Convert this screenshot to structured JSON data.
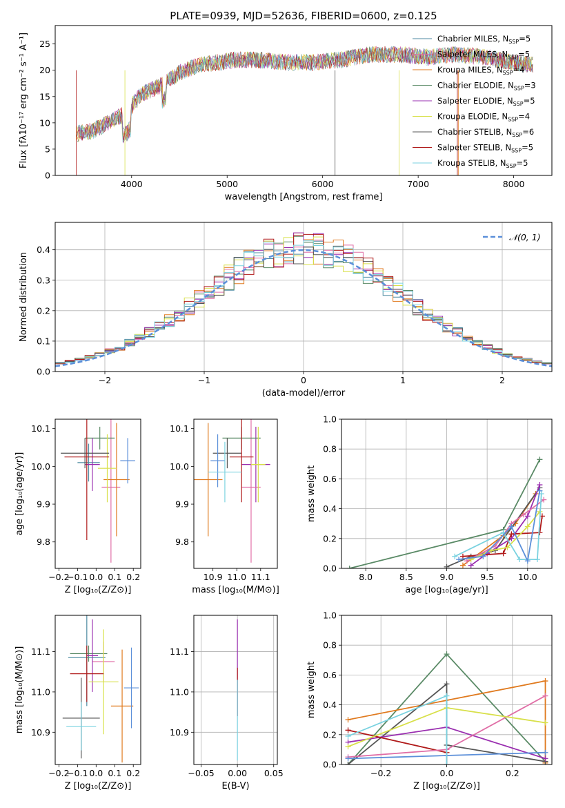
{
  "figure_title": "PLATE=0939, MJD=52636, FIBERID=0600, z=0.125",
  "colors": {
    "series": [
      "#4c8aa0",
      "#e06ea6",
      "#e07a1f",
      "#5a8a66",
      "#9a2fb0",
      "#d8e04a",
      "#555555",
      "#b01a1a",
      "#7ad2e0",
      "#5b8fd9"
    ],
    "grid": "#b0b0b0",
    "normal_curve": "#5b8fd9"
  },
  "chart_data": [
    {
      "id": "spectrum",
      "type": "line",
      "title": "PLATE=0939, MJD=52636, FIBERID=0600, z=0.125",
      "xlabel": "wavelength [Angstrom, rest frame]",
      "ylabel": "Flux [fλ10⁻¹⁷ erg cm⁻² s⁻¹ A⁻¹]",
      "xlim": [
        3200,
        8400
      ],
      "ylim": [
        0,
        28.5
      ],
      "xticks": [
        4000,
        5000,
        6000,
        7000,
        8000
      ],
      "yticks": [
        0,
        5,
        10,
        15,
        20,
        25
      ],
      "grid": false,
      "legend_position": "top-right",
      "legend": [
        "Chabrier MILES, N_SSP=5",
        "Salpeter MILES, N_SSP=5",
        "Kroupa MILES, N_SSP=4",
        "Chabrier ELODIE, N_SSP=3",
        "Salpeter ELODIE, N_SSP=5",
        "Kroupa ELODIE, N_SSP=4",
        "Chabrier STELIB, N_SSP=6",
        "Salpeter STELIB, N_SSP=5",
        "Kroupa STELIB, N_SSP=5"
      ],
      "continuum_x": [
        3450,
        3600,
        3800,
        3950,
        4100,
        4300,
        4500,
        4700,
        4900,
        5100,
        5300,
        5600,
        5900,
        6200,
        6500,
        6800,
        7100,
        7400,
        7700,
        8000,
        8200
      ],
      "continuum_y": [
        8,
        8.5,
        10.5,
        12,
        15.5,
        17,
        19.5,
        21,
        21.5,
        22,
        22,
        21.5,
        21.5,
        22,
        23,
        23,
        22.5,
        23,
        22.5,
        21.5,
        21
      ]
    },
    {
      "id": "residuals",
      "type": "histogram",
      "xlabel": "(data-model)/error",
      "ylabel": "Normed distribution",
      "xlim": [
        -2.5,
        2.5
      ],
      "ylim": [
        0,
        0.49
      ],
      "xticks": [
        -2,
        -1,
        0,
        1,
        2
      ],
      "yticks": [
        0.0,
        0.1,
        0.2,
        0.3,
        0.4
      ],
      "grid": true,
      "legend_position": "top-right",
      "legend": [
        "𝒩(0, 1)"
      ]
    },
    {
      "id": "age_vs_z",
      "type": "errorbar",
      "xlabel": "Z [log₁₀(Z/Z⊙)]",
      "ylabel": "age  [log₁₀(age/yr)]",
      "xlim": [
        -0.22,
        0.24
      ],
      "ylim": [
        9.73,
        10.125
      ],
      "xticks": [
        -0.2,
        -0.1,
        0.0,
        0.1,
        0.2
      ],
      "yticks": [
        9.8,
        9.9,
        10.0,
        10.1
      ],
      "grid": false,
      "points": [
        {
          "x": -0.04,
          "y": 10.01,
          "xerr": 0.06,
          "yerr": 0.05,
          "c": 0
        },
        {
          "x": 0.08,
          "y": 9.945,
          "xerr": 0.05,
          "yerr": 0.2,
          "c": 1
        },
        {
          "x": 0.11,
          "y": 9.965,
          "xerr": 0.07,
          "yerr": 0.15,
          "c": 2
        },
        {
          "x": 0.02,
          "y": 10.075,
          "xerr": 0.08,
          "yerr": 0.03,
          "c": 3
        },
        {
          "x": -0.02,
          "y": 10.005,
          "xerr": 0.04,
          "yerr": 0.07,
          "c": 4
        },
        {
          "x": 0.06,
          "y": 9.995,
          "xerr": 0.05,
          "yerr": 0.09,
          "c": 5
        },
        {
          "x": -0.06,
          "y": 10.035,
          "xerr": 0.13,
          "yerr": 0.04,
          "c": 6
        },
        {
          "x": -0.05,
          "y": 10.025,
          "xerr": 0.12,
          "yerr": 0.22,
          "c": 7
        },
        {
          "x": 0.17,
          "y": 10.015,
          "xerr": 0.04,
          "yerr": 0.06,
          "c": 9
        }
      ]
    },
    {
      "id": "age_vs_mass",
      "type": "errorbar",
      "xlabel": "mass [log₁₀(M/M⊙)]",
      "ylabel": "",
      "xlim": [
        10.82,
        11.17
      ],
      "ylim": [
        9.73,
        10.125
      ],
      "xticks": [
        10.9,
        11.0,
        11.1
      ],
      "yticks": [
        9.8,
        9.9,
        10.0,
        10.1
      ],
      "grid": false,
      "points": [
        {
          "x": 11.08,
          "y": 10.005,
          "xerr": 0.06,
          "yerr": 0.1,
          "c": 4
        },
        {
          "x": 11.06,
          "y": 9.945,
          "xerr": 0.04,
          "yerr": 0.2,
          "c": 1
        },
        {
          "x": 10.88,
          "y": 9.965,
          "xerr": 0.06,
          "yerr": 0.15,
          "c": 2
        },
        {
          "x": 11.02,
          "y": 10.075,
          "xerr": 0.08,
          "yerr": 0.03,
          "c": 3
        },
        {
          "x": 11.09,
          "y": 10.005,
          "xerr": 0.03,
          "yerr": 0.1,
          "c": 5
        },
        {
          "x": 10.96,
          "y": 10.035,
          "xerr": 0.06,
          "yerr": 0.04,
          "c": 6
        },
        {
          "x": 11.02,
          "y": 10.025,
          "xerr": 0.05,
          "yerr": 0.12,
          "c": 7
        },
        {
          "x": 10.92,
          "y": 10.015,
          "xerr": 0.03,
          "yerr": 0.07,
          "c": 9
        },
        {
          "x": 10.95,
          "y": 9.985,
          "xerr": 0.07,
          "yerr": 0.08,
          "c": 8
        }
      ]
    },
    {
      "id": "weight_vs_age",
      "type": "line",
      "xlabel": "age  [log₁₀(age/yr)]",
      "ylabel": "mass weight",
      "xlim": [
        7.7,
        10.3
      ],
      "ylim": [
        0,
        1.0
      ],
      "xticks": [
        8.0,
        8.5,
        9.0,
        9.5,
        10.0
      ],
      "yticks": [
        0.0,
        0.2,
        0.4,
        0.6,
        0.8,
        1.0
      ],
      "grid": true,
      "series": [
        {
          "c": 3,
          "x": [
            7.8,
            9.7,
            10.15
          ],
          "y": [
            0.0,
            0.26,
            0.73
          ]
        },
        {
          "c": 2,
          "x": [
            9.2,
            9.7,
            9.85,
            10.1
          ],
          "y": [
            0.02,
            0.22,
            0.3,
            0.5
          ]
        },
        {
          "c": 6,
          "x": [
            9.0,
            9.3,
            9.6,
            10.15
          ],
          "y": [
            0.01,
            0.08,
            0.12,
            0.54
          ]
        },
        {
          "c": 4,
          "x": [
            9.3,
            9.5,
            9.8,
            10.0,
            10.15
          ],
          "y": [
            0.02,
            0.1,
            0.2,
            0.35,
            0.56
          ]
        },
        {
          "c": 7,
          "x": [
            9.2,
            9.7,
            9.8,
            10.15,
            10.18
          ],
          "y": [
            0.08,
            0.1,
            0.23,
            0.24,
            0.35
          ]
        },
        {
          "c": 1,
          "x": [
            9.25,
            9.6,
            9.8,
            9.95,
            10.2
          ],
          "y": [
            0.05,
            0.15,
            0.3,
            0.36,
            0.46
          ]
        },
        {
          "c": 5,
          "x": [
            9.3,
            9.55,
            9.75,
            10.0,
            10.15
          ],
          "y": [
            0.06,
            0.12,
            0.14,
            0.28,
            0.38
          ]
        },
        {
          "c": 8,
          "x": [
            9.1,
            9.7,
            9.9,
            10.12,
            10.17
          ],
          "y": [
            0.08,
            0.24,
            0.06,
            0.06,
            0.5
          ]
        },
        {
          "c": 9,
          "x": [
            9.15,
            9.45,
            9.8,
            10.0,
            10.15
          ],
          "y": [
            0.06,
            0.08,
            0.28,
            0.05,
            0.52
          ]
        }
      ]
    },
    {
      "id": "mass_vs_z",
      "type": "errorbar",
      "xlabel": "Z [log₁₀(Z/Z⊙)]",
      "ylabel": "mass [log₁₀(M/M⊙)]",
      "xlim": [
        -0.22,
        0.24
      ],
      "ylim": [
        10.82,
        11.19
      ],
      "xticks": [
        -0.2,
        -0.1,
        0.0,
        0.1,
        0.2
      ],
      "yticks": [
        10.9,
        11.0,
        11.1
      ],
      "grid": false,
      "points": [
        {
          "x": -0.04,
          "y": 11.095,
          "xerr": 0.1,
          "yerr": 0.02,
          "c": 3
        },
        {
          "x": 0.04,
          "y": 11.075,
          "xerr": 0.06,
          "yerr": 0.05,
          "c": 1
        },
        {
          "x": 0.14,
          "y": 10.965,
          "xerr": 0.06,
          "yerr": 0.14,
          "c": 2
        },
        {
          "x": -0.05,
          "y": 11.085,
          "xerr": 0.1,
          "yerr": 0.12,
          "c": 0
        },
        {
          "x": -0.02,
          "y": 11.09,
          "xerr": 0.03,
          "yerr": 0.09,
          "c": 4
        },
        {
          "x": 0.04,
          "y": 11.025,
          "xerr": 0.08,
          "yerr": 0.13,
          "c": 5
        },
        {
          "x": -0.08,
          "y": 10.935,
          "xerr": 0.1,
          "yerr": 0.1,
          "c": 6
        },
        {
          "x": -0.05,
          "y": 11.045,
          "xerr": 0.09,
          "yerr": 0.07,
          "c": 7
        },
        {
          "x": 0.19,
          "y": 11.01,
          "xerr": 0.04,
          "yerr": 0.1,
          "c": 9
        },
        {
          "x": -0.08,
          "y": 10.915,
          "xerr": 0.08,
          "yerr": 0.06,
          "c": 8
        }
      ]
    },
    {
      "id": "mass_vs_ebv",
      "type": "errorbar",
      "xlabel": "E(B-V)",
      "ylabel": "",
      "xlim": [
        -0.06,
        0.055
      ],
      "ylim": [
        10.82,
        11.19
      ],
      "xticks": [
        -0.05,
        0.0,
        0.05
      ],
      "yticks": [
        10.9,
        11.0,
        11.1
      ],
      "grid": true,
      "points": [
        {
          "x": 0.0,
          "y": 11.06,
          "xerr": 0.0,
          "yerr": 0.12,
          "c": 4
        },
        {
          "x": 0.0,
          "y": 11.0,
          "xerr": 0.0,
          "yerr": 0.06,
          "c": 7
        },
        {
          "x": 0.0,
          "y": 10.93,
          "xerr": 0.0,
          "yerr": 0.1,
          "c": 8
        }
      ]
    },
    {
      "id": "weight_vs_z",
      "type": "line",
      "xlabel": "Z [log₁₀(Z/Z⊙)]",
      "ylabel": "mass weight",
      "xlim": [
        -0.32,
        0.32
      ],
      "ylim": [
        0,
        1.0
      ],
      "xticks": [
        -0.2,
        0.0,
        0.2
      ],
      "yticks": [
        0.0,
        0.2,
        0.4,
        0.6,
        0.8,
        1.0
      ],
      "grid": true,
      "series": [
        {
          "c": 3,
          "x": [
            -0.3,
            0.0,
            0.3
          ],
          "y": [
            0.0,
            0.74,
            0.02
          ]
        },
        {
          "c": 2,
          "x": [
            -0.3,
            0.3,
            0.3
          ],
          "y": [
            0.3,
            0.56,
            0.01
          ]
        },
        {
          "c": 6,
          "x": [
            -0.3,
            0.0,
            0.0,
            0.3
          ],
          "y": [
            0.0,
            0.54,
            0.13,
            0.02
          ]
        },
        {
          "c": 4,
          "x": [
            -0.3,
            0.0,
            0.3
          ],
          "y": [
            0.15,
            0.25,
            0.04
          ]
        },
        {
          "c": 7,
          "x": [
            -0.3,
            0.0,
            0.0
          ],
          "y": [
            0.23,
            0.08,
            0.0
          ]
        },
        {
          "c": 1,
          "x": [
            -0.3,
            0.0,
            0.3
          ],
          "y": [
            0.05,
            0.1,
            0.46
          ]
        },
        {
          "c": 5,
          "x": [
            -0.3,
            0.0,
            0.3
          ],
          "y": [
            0.12,
            0.38,
            0.28
          ]
        },
        {
          "c": 9,
          "x": [
            -0.3,
            0.0,
            0.3
          ],
          "y": [
            0.04,
            0.06,
            0.08
          ]
        },
        {
          "c": 8,
          "x": [
            -0.3,
            0.0,
            0.0
          ],
          "y": [
            0.19,
            0.46,
            0.0
          ]
        }
      ]
    }
  ]
}
